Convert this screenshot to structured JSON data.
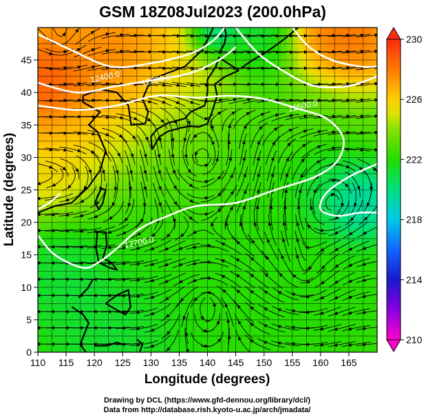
{
  "title": "GSM 18Z08Jul2023 (200.0hPa)",
  "xlabel": "Longitude (degrees)",
  "ylabel": "Latitude  (degrees)",
  "credits": [
    "Drawing by DCL (https://www.gfd-dennou.org/library/dcl/)",
    "Data from http://database.rish.kyoto-u.ac.jp/arch/jmadata/"
  ],
  "colorbar": {
    "ticks": [
      "230",
      "226",
      "222",
      "218",
      "214",
      "210"
    ],
    "stops": [
      {
        "value": 210,
        "color": "#ff00cc"
      },
      {
        "value": 212,
        "color": "#8800dd"
      },
      {
        "value": 214,
        "color": "#1a1acc"
      },
      {
        "value": 216,
        "color": "#1166ff"
      },
      {
        "value": 218,
        "color": "#00c8e8"
      },
      {
        "value": 220,
        "color": "#00e080"
      },
      {
        "value": 222,
        "color": "#22dd00"
      },
      {
        "value": 224,
        "color": "#88e000"
      },
      {
        "value": 225,
        "color": "#d8e400"
      },
      {
        "value": 226,
        "color": "#ffcc00"
      },
      {
        "value": 228,
        "color": "#ff7a00"
      },
      {
        "value": 230,
        "color": "#ff2a10"
      }
    ]
  },
  "chart_data": {
    "type": "heatmap",
    "xlim": [
      110,
      170
    ],
    "ylim": [
      0,
      50
    ],
    "xticks": [
      "110",
      "115",
      "120",
      "125",
      "130",
      "135",
      "140",
      "145",
      "150",
      "155",
      "160",
      "165"
    ],
    "yticks": [
      "0",
      "5",
      "10",
      "15",
      "20",
      "25",
      "30",
      "35",
      "40",
      "45"
    ],
    "grid": true,
    "contour_labels": [
      {
        "text": "12500.0",
        "lon": 157,
        "lat": 37.5
      },
      {
        "text": "12400.0",
        "lon": 122,
        "lat": 42
      },
      {
        "text": "12300.0",
        "lon": 131,
        "lat": 41.5
      },
      {
        "text": "12700.0",
        "lon": 128,
        "lat": 16.5
      }
    ],
    "contours": [
      {
        "name": "c1",
        "points": [
          [
            110,
            49
          ],
          [
            116,
            46.5
          ],
          [
            123,
            44
          ],
          [
            130,
            44.5
          ],
          [
            137,
            46
          ],
          [
            141,
            48
          ],
          [
            143,
            50
          ]
        ]
      },
      {
        "name": "c2",
        "points": [
          [
            110,
            41.5
          ],
          [
            117,
            40
          ],
          [
            124,
            41
          ],
          [
            131,
            42
          ],
          [
            137,
            43
          ],
          [
            142,
            45
          ],
          [
            145,
            47
          ]
        ]
      },
      {
        "name": "c3",
        "points": [
          [
            110,
            38
          ],
          [
            117,
            37.3
          ],
          [
            124,
            38
          ],
          [
            131,
            39.5
          ],
          [
            138,
            39.2
          ],
          [
            144,
            39.5
          ],
          [
            150,
            39
          ],
          [
            156,
            37.5
          ],
          [
            161,
            36
          ],
          [
            164,
            33
          ],
          [
            163,
            29.5
          ],
          [
            159,
            27
          ],
          [
            152,
            25
          ],
          [
            145,
            23
          ],
          [
            138,
            22.5
          ],
          [
            133,
            21
          ],
          [
            128,
            19
          ],
          [
            124,
            16
          ],
          [
            121,
            14
          ],
          [
            118,
            13
          ],
          [
            113,
            15
          ],
          [
            110,
            18
          ]
        ]
      },
      {
        "name": "c4",
        "points": [
          [
            155,
            50
          ],
          [
            158,
            47
          ],
          [
            162,
            45
          ],
          [
            167,
            44
          ],
          [
            170,
            44
          ]
        ]
      },
      {
        "name": "c5",
        "points": [
          [
            145,
            50
          ],
          [
            149,
            46
          ],
          [
            154,
            43
          ],
          [
            159,
            41
          ],
          [
            165,
            41
          ],
          [
            170,
            42.5
          ]
        ]
      },
      {
        "name": "c6",
        "points": [
          [
            170,
            29
          ],
          [
            165,
            27
          ],
          [
            161,
            24.5
          ],
          [
            160,
            22
          ],
          [
            163,
            21
          ],
          [
            167,
            21.5
          ],
          [
            170,
            21.5
          ]
        ]
      },
      {
        "name": "c7",
        "points": [
          [
            110,
            22
          ],
          [
            112,
            23
          ],
          [
            114,
            24.5
          ]
        ]
      }
    ],
    "fields": [
      {
        "lon": 118,
        "lat": 42,
        "value": 229,
        "radius": 7
      },
      {
        "lon": 112,
        "lat": 40,
        "value": 230,
        "radius": 4
      },
      {
        "lon": 118,
        "lat": 49,
        "value": 227,
        "radius": 3
      },
      {
        "lon": 127,
        "lat": 45,
        "value": 228,
        "radius": 5
      },
      {
        "lon": 136,
        "lat": 43,
        "value": 226,
        "radius": 5
      },
      {
        "lon": 148,
        "lat": 49,
        "value": 221,
        "radius": 4
      },
      {
        "lon": 141,
        "lat": 49,
        "value": 218,
        "radius": 2.5
      },
      {
        "lon": 164,
        "lat": 48,
        "value": 229,
        "radius": 5
      },
      {
        "lon": 112,
        "lat": 30,
        "value": 226,
        "radius": 5
      },
      {
        "lon": 120,
        "lat": 33,
        "value": 225,
        "radius": 6
      },
      {
        "lon": 135,
        "lat": 33,
        "value": 224,
        "radius": 8
      },
      {
        "lon": 160,
        "lat": 34,
        "value": 223,
        "radius": 6
      },
      {
        "lon": 146,
        "lat": 27,
        "value": 222,
        "radius": 8
      },
      {
        "lon": 166,
        "lat": 23,
        "value": 218,
        "radius": 3.5
      },
      {
        "lon": 161,
        "lat": 26,
        "value": 220,
        "radius": 4
      },
      {
        "lon": 130,
        "lat": 20,
        "value": 222,
        "radius": 6
      },
      {
        "lon": 116,
        "lat": 12,
        "value": 221,
        "radius": 5
      },
      {
        "lon": 140,
        "lat": 10,
        "value": 222,
        "radius": 9
      },
      {
        "lon": 160,
        "lat": 12,
        "value": 222,
        "radius": 7
      },
      {
        "lon": 125,
        "lat": 3,
        "value": 221,
        "radius": 6
      }
    ],
    "base_value": 222.5,
    "circulations": [
      {
        "lon": 139,
        "lat": 30,
        "sense": 1,
        "strength": 10
      },
      {
        "lon": 114,
        "lat": 48,
        "sense": 1,
        "strength": 4
      },
      {
        "lon": 162,
        "lat": 23,
        "sense": -1,
        "strength": 5
      },
      {
        "lon": 157,
        "lat": 12,
        "sense": -1,
        "strength": 6
      },
      {
        "lon": 140,
        "lat": 8,
        "sense": 1,
        "strength": 5
      }
    ],
    "coastlines": [
      {
        "name": "china-coast",
        "points": [
          [
            110,
            21.5
          ],
          [
            113,
            22.5
          ],
          [
            116,
            23
          ],
          [
            119,
            25.5
          ],
          [
            121,
            28
          ],
          [
            122,
            31
          ],
          [
            120.5,
            34
          ],
          [
            119,
            35
          ],
          [
            121,
            37
          ],
          [
            118,
            38.5
          ],
          [
            118,
            39.5
          ],
          [
            121,
            40.5
          ],
          [
            124,
            40
          ],
          [
            126,
            38
          ],
          [
            126.5,
            35
          ],
          [
            129,
            35.2
          ],
          [
            129.5,
            37
          ],
          [
            128.5,
            39
          ],
          [
            130,
            42
          ],
          [
            133,
            43
          ],
          [
            136,
            44
          ],
          [
            139,
            46.5
          ],
          [
            140.5,
            49
          ],
          [
            141,
            50
          ]
        ]
      },
      {
        "name": "japan",
        "points": [
          [
            130.2,
            31.2
          ],
          [
            131.5,
            33.2
          ],
          [
            133,
            34
          ],
          [
            135,
            34.5
          ],
          [
            136.8,
            34.8
          ],
          [
            138.5,
            34.7
          ],
          [
            140,
            35.2
          ],
          [
            140.8,
            37
          ],
          [
            141.7,
            39.5
          ],
          [
            141.3,
            41.3
          ],
          [
            143,
            42.4
          ],
          [
            145.5,
            43.4
          ],
          [
            144.5,
            44
          ],
          [
            142,
            45.4
          ],
          [
            141.5,
            44
          ],
          [
            140,
            42
          ],
          [
            140,
            40
          ],
          [
            139.5,
            38
          ],
          [
            137,
            37
          ],
          [
            136,
            36
          ],
          [
            133,
            35.3
          ],
          [
            131,
            34.3
          ],
          [
            130,
            33.2
          ],
          [
            130.2,
            31.2
          ]
        ]
      },
      {
        "name": "sakhalin",
        "points": [
          [
            142,
            46
          ],
          [
            143,
            47.5
          ],
          [
            143.3,
            49
          ],
          [
            143,
            50
          ]
        ]
      },
      {
        "name": "kurils",
        "points": [
          [
            146,
            43.8
          ],
          [
            148,
            45
          ],
          [
            150,
            46
          ],
          [
            152,
            47.2
          ],
          [
            154,
            48.5
          ],
          [
            156,
            50
          ]
        ]
      },
      {
        "name": "taiwan",
        "points": [
          [
            120.1,
            23
          ],
          [
            120.8,
            22
          ],
          [
            121.5,
            23
          ],
          [
            122,
            25
          ],
          [
            121.2,
            25.2
          ],
          [
            120.1,
            23
          ]
        ]
      },
      {
        "name": "luzon",
        "points": [
          [
            120.5,
            18.5
          ],
          [
            122,
            18.5
          ],
          [
            122.2,
            16.5
          ],
          [
            121.5,
            14.5
          ],
          [
            123,
            13.8
          ],
          [
            124,
            12.7
          ],
          [
            122.7,
            13
          ],
          [
            120.8,
            13.8
          ],
          [
            120.3,
            16
          ],
          [
            120.5,
            18.5
          ]
        ]
      },
      {
        "name": "mindanao",
        "points": [
          [
            122,
            7.5
          ],
          [
            124,
            8.8
          ],
          [
            126,
            9.6
          ],
          [
            126.4,
            7
          ],
          [
            125.5,
            5.8
          ],
          [
            124,
            6.5
          ],
          [
            122,
            7.5
          ]
        ]
      },
      {
        "name": "borneo",
        "points": [
          [
            116,
            7
          ],
          [
            118,
            5.8
          ],
          [
            119,
            4.5
          ],
          [
            117.5,
            1.2
          ],
          [
            118.5,
            0
          ]
        ]
      },
      {
        "name": "sulawesi",
        "points": [
          [
            120,
            1
          ],
          [
            122.2,
            1
          ],
          [
            124,
            1.5
          ],
          [
            125,
            1.2
          ]
        ]
      },
      {
        "name": "halmahera",
        "points": [
          [
            127.5,
            2
          ],
          [
            128.5,
            1.2
          ],
          [
            128,
            0
          ]
        ]
      },
      {
        "name": "palawan",
        "points": [
          [
            117.2,
            8.4
          ],
          [
            118.8,
            9.8
          ],
          [
            119.7,
            11.2
          ]
        ]
      }
    ]
  }
}
